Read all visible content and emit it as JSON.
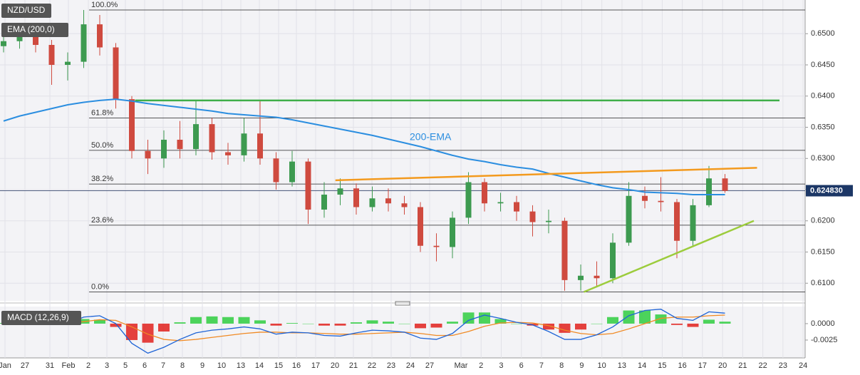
{
  "chart_data": {
    "type": "candlestick",
    "title": "NZD/USD",
    "indicator_label": "EMA (200,0)",
    "ema_annotation": "200-EMA",
    "x_labels": [
      "Jan",
      "27",
      "31",
      "Feb",
      "2",
      "3",
      "5",
      "6",
      "7",
      "8",
      "9",
      "10",
      "13",
      "14",
      "15",
      "16",
      "17",
      "20",
      "21",
      "22",
      "23",
      "24",
      "27",
      "Mar",
      "2",
      "3",
      "6",
      "7",
      "8",
      "9",
      "10",
      "13",
      "14",
      "15",
      "16",
      "17",
      "20",
      "21",
      "22",
      "23",
      "24"
    ],
    "up_color": "#3d9a50",
    "down_color": "#cf4a3f",
    "candles": [
      [
        0.648,
        0.65,
        0.647,
        0.6488
      ],
      [
        0.6488,
        0.6512,
        0.6476,
        0.65
      ],
      [
        0.65,
        0.6508,
        0.647,
        0.6482
      ],
      [
        0.6482,
        0.649,
        0.6418,
        0.645
      ],
      [
        0.645,
        0.647,
        0.6425,
        0.6455
      ],
      [
        0.6455,
        0.6538,
        0.6445,
        0.6515
      ],
      [
        0.6515,
        0.653,
        0.6465,
        0.6478
      ],
      [
        0.6478,
        0.6485,
        0.638,
        0.6395
      ],
      [
        0.6395,
        0.64,
        0.63,
        0.6312
      ],
      [
        0.6312,
        0.633,
        0.6275,
        0.63
      ],
      [
        0.63,
        0.6345,
        0.6285,
        0.633
      ],
      [
        0.633,
        0.636,
        0.63,
        0.6315
      ],
      [
        0.6315,
        0.6392,
        0.6305,
        0.6355
      ],
      [
        0.6355,
        0.6365,
        0.6298,
        0.631
      ],
      [
        0.631,
        0.6325,
        0.629,
        0.6305
      ],
      [
        0.6305,
        0.6365,
        0.6295,
        0.634
      ],
      [
        0.634,
        0.6392,
        0.629,
        0.63
      ],
      [
        0.63,
        0.631,
        0.625,
        0.6262
      ],
      [
        0.6262,
        0.6312,
        0.6255,
        0.6295
      ],
      [
        0.6295,
        0.63,
        0.6195,
        0.6218
      ],
      [
        0.6218,
        0.6262,
        0.6205,
        0.6242
      ],
      [
        0.6242,
        0.6268,
        0.6225,
        0.6252
      ],
      [
        0.6252,
        0.626,
        0.621,
        0.6222
      ],
      [
        0.6222,
        0.6255,
        0.6215,
        0.6236
      ],
      [
        0.6236,
        0.6252,
        0.6215,
        0.6228
      ],
      [
        0.6228,
        0.624,
        0.621,
        0.6222
      ],
      [
        0.6222,
        0.623,
        0.615,
        0.616
      ],
      [
        0.616,
        0.618,
        0.6135,
        0.6158
      ],
      [
        0.6158,
        0.6215,
        0.614,
        0.6205
      ],
      [
        0.6205,
        0.6278,
        0.6195,
        0.6262
      ],
      [
        0.6262,
        0.6268,
        0.6215,
        0.6228
      ],
      [
        0.6228,
        0.6245,
        0.6215,
        0.623
      ],
      [
        0.623,
        0.624,
        0.62,
        0.6215
      ],
      [
        0.6215,
        0.6225,
        0.6175,
        0.6198
      ],
      [
        0.6198,
        0.6218,
        0.618,
        0.62
      ],
      [
        0.62,
        0.6205,
        0.6088,
        0.6105
      ],
      [
        0.6105,
        0.613,
        0.6088,
        0.6112
      ],
      [
        0.6112,
        0.6135,
        0.6095,
        0.6108
      ],
      [
        0.6108,
        0.618,
        0.61,
        0.6165
      ],
      [
        0.6165,
        0.6262,
        0.616,
        0.624
      ],
      [
        0.624,
        0.6255,
        0.622,
        0.6232
      ],
      [
        0.6232,
        0.627,
        0.6215,
        0.623
      ],
      [
        0.623,
        0.6235,
        0.614,
        0.6168
      ],
      [
        0.6168,
        0.6235,
        0.616,
        0.6225
      ],
      [
        0.6225,
        0.6288,
        0.6222,
        0.6268
      ],
      [
        0.6268,
        0.6275,
        0.6245,
        0.6248
      ]
    ],
    "ema": {
      "color": "#2b8ee0",
      "values": [
        0.636,
        0.6368,
        0.6374,
        0.638,
        0.6386,
        0.639,
        0.6393,
        0.6395,
        0.6392,
        0.6388,
        0.6385,
        0.6382,
        0.6379,
        0.6376,
        0.6372,
        0.637,
        0.6368,
        0.6366,
        0.6362,
        0.6357,
        0.6352,
        0.6347,
        0.6342,
        0.6337,
        0.6331,
        0.6325,
        0.6319,
        0.6312,
        0.6305,
        0.6299,
        0.6295,
        0.629,
        0.6286,
        0.6283,
        0.6276,
        0.627,
        0.6264,
        0.6258,
        0.6253,
        0.625,
        0.6246,
        0.6245,
        0.6244,
        0.6242,
        0.6242,
        0.6242
      ]
    },
    "lines": [
      {
        "x": [
          8.2,
          48.4
        ],
        "y": [
          0.6393,
          0.6393
        ],
        "color": "#3fae49"
      },
      {
        "x": [
          20.7,
          47.0
        ],
        "y": [
          0.6265,
          0.6285
        ],
        "color": "#f39a1e"
      },
      {
        "x": [
          36.2,
          46.8
        ],
        "y": [
          0.6086,
          0.62
        ],
        "color": "#9ccc3c"
      }
    ],
    "fib_levels": [
      {
        "label": "100.0%",
        "value": 0.6538
      },
      {
        "label": "61.8%",
        "value": 0.6365
      },
      {
        "label": "50.0%",
        "value": 0.6313
      },
      {
        "label": "38.2%",
        "value": 0.6259
      },
      {
        "label": "23.6%",
        "value": 0.6193
      },
      {
        "label": "0.0%",
        "value": 0.6086
      }
    ],
    "last_price": {
      "value": 0.62483,
      "label": "0.624830"
    },
    "ylim": [
      0.6074,
      0.6554
    ],
    "yticks": [
      {
        "value": 0.61,
        "label": "0.6100"
      },
      {
        "value": 0.615,
        "label": "0.6150"
      },
      {
        "value": 0.62,
        "label": "0.6200"
      },
      {
        "value": 0.625,
        "label": "0.6250"
      },
      {
        "value": 0.63,
        "label": "0.6300"
      },
      {
        "value": 0.635,
        "label": "0.6350"
      },
      {
        "value": 0.64,
        "label": "0.6400"
      },
      {
        "value": 0.645,
        "label": "0.6450"
      },
      {
        "value": 0.65,
        "label": "0.6500"
      }
    ],
    "grid": true,
    "macd": {
      "label": "MACD (12,26,9)",
      "macd_color": "#1f64d6",
      "signal_color": "#f08a24",
      "pos_color": "#2ecc40",
      "neg_color": "#e0201c",
      "macd": [
        0.0002,
        0.0002,
        0.0001,
        -0.0001,
        0.0,
        0.001,
        0.0012,
        0.0,
        -0.003,
        -0.0045,
        -0.0036,
        -0.0024,
        -0.0014,
        -0.001,
        -0.0008,
        -0.0005,
        -0.0008,
        -0.0016,
        -0.0013,
        -0.0014,
        -0.0018,
        -0.0019,
        -0.0014,
        -0.001,
        -0.0011,
        -0.0013,
        -0.0022,
        -0.0024,
        -0.0015,
        0.0005,
        0.0013,
        0.0008,
        0.0002,
        -0.0002,
        -0.0012,
        -0.0024,
        -0.0024,
        -0.0017,
        -0.0005,
        0.0012,
        0.002,
        0.0022,
        0.0008,
        0.0005,
        0.0018,
        0.0016
      ],
      "signal": [
        0.0001,
        0.0002,
        0.0002,
        0.0001,
        0.0001,
        0.0003,
        0.0006,
        0.0005,
        -0.0005,
        -0.0016,
        -0.0024,
        -0.0026,
        -0.0024,
        -0.0021,
        -0.0018,
        -0.0015,
        -0.0013,
        -0.0013,
        -0.0014,
        -0.0014,
        -0.0015,
        -0.0016,
        -0.0016,
        -0.0015,
        -0.0014,
        -0.0013,
        -0.0015,
        -0.0018,
        -0.0018,
        -0.0012,
        -0.0004,
        0.0001,
        0.0002,
        0.0001,
        -0.0003,
        -0.001,
        -0.0015,
        -0.0017,
        -0.0015,
        -0.0008,
        0.0,
        0.0008,
        0.001,
        0.001,
        0.0012,
        0.0013
      ],
      "histogram": [
        0.0001,
        0,
        -0.0001,
        -0.0002,
        -0.0001,
        0.0007,
        0.0006,
        -0.0005,
        -0.0025,
        -0.0029,
        -0.0012,
        0.0002,
        0.001,
        0.0011,
        0.001,
        0.001,
        0.0005,
        -0.0003,
        0.0001,
        0,
        -0.0003,
        -0.0003,
        0.0002,
        0.0005,
        0.0003,
        0,
        -0.0007,
        -0.0006,
        0.0003,
        0.0017,
        0.0017,
        0.0007,
        0,
        -0.0003,
        -0.0009,
        -0.0014,
        -0.0009,
        0,
        0.001,
        0.002,
        0.002,
        0.0014,
        -0.0002,
        -0.0005,
        0.0006,
        0.0003
      ],
      "y2lim": [
        -0.005,
        0.0026
      ],
      "y2ticks": [
        {
          "value": 0,
          "label": "0.0000"
        },
        {
          "value": -0.0025,
          "label": "-0.0025"
        }
      ]
    }
  }
}
